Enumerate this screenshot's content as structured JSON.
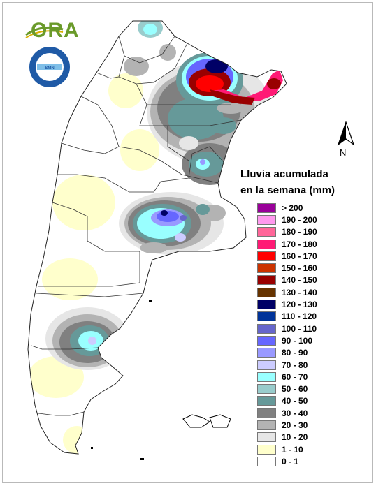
{
  "organization_logo": {
    "text": "ORA",
    "icon": "sun-arc-logo"
  },
  "agency_seal": {
    "text": "SERVICIO METEOROLOGICO NACIONAL · ARGENTINA",
    "icon": "smn-seal"
  },
  "north_arrow": {
    "label": "N",
    "icon": "north-arrow-icon"
  },
  "legend": {
    "title_line1": "Lluvia acumulada",
    "title_line2": "en la semana (mm)",
    "items": [
      {
        "label": "> 200",
        "color": "#990099"
      },
      {
        "label": "190 - 200",
        "color": "#ff99ee"
      },
      {
        "label": "180 - 190",
        "color": "#ff6699"
      },
      {
        "label": "170 - 180",
        "color": "#ff1a75"
      },
      {
        "label": "160 - 170",
        "color": "#ff0000"
      },
      {
        "label": "150 - 160",
        "color": "#cc3300"
      },
      {
        "label": "140 - 150",
        "color": "#990000"
      },
      {
        "label": "130 - 140",
        "color": "#663300"
      },
      {
        "label": "120 - 130",
        "color": "#000066"
      },
      {
        "label": "110 - 120",
        "color": "#003399"
      },
      {
        "label": "100 - 110",
        "color": "#6666cc"
      },
      {
        "label": "90 - 100",
        "color": "#6666ff"
      },
      {
        "label": "80 - 90",
        "color": "#9999ff"
      },
      {
        "label": "70 - 80",
        "color": "#ccccff"
      },
      {
        "label": "60 - 70",
        "color": "#99ffff"
      },
      {
        "label": "50 - 60",
        "color": "#99cccc"
      },
      {
        "label": "40 - 50",
        "color": "#669999"
      },
      {
        "label": "30 - 40",
        "color": "#808080"
      },
      {
        "label": "20 - 30",
        "color": "#b3b3b3"
      },
      {
        "label": "10 - 20",
        "color": "#e6e6e6"
      },
      {
        "label": "1 - 10",
        "color": "#ffffcc"
      },
      {
        "label": "0 - 1",
        "color": "#ffffff"
      }
    ]
  }
}
